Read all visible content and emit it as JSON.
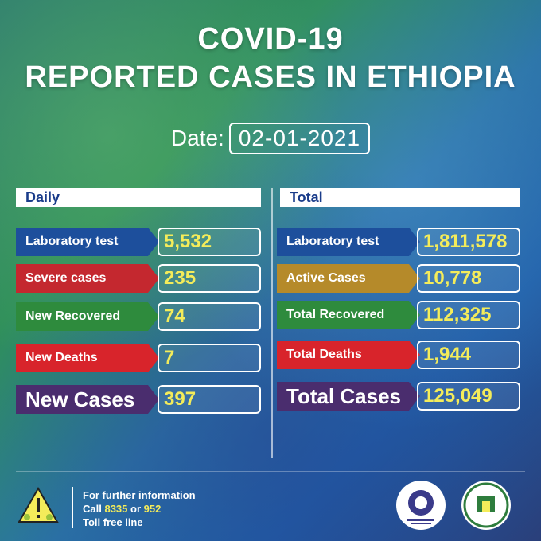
{
  "title": {
    "line1": "COVID-19",
    "line2": "REPORTED CASES IN ETHIOPIA"
  },
  "date": {
    "label": "Date:",
    "value": "02-01-2021"
  },
  "daily": {
    "header": "Daily",
    "rows": [
      {
        "label": "Laboratory test",
        "value": "5,532",
        "color": "#1d4f9c"
      },
      {
        "label": "Severe cases",
        "value": "235",
        "color": "#c4282f"
      },
      {
        "label": "New Recovered",
        "value": "74",
        "color": "#2e8b3d"
      },
      {
        "label": "New Deaths",
        "value": "7",
        "color": "#d8242b"
      },
      {
        "label": "New Cases",
        "value": "397",
        "color": "#4a2d6e"
      }
    ]
  },
  "total": {
    "header": "Total",
    "rows": [
      {
        "label": "Laboratory test",
        "value": "1,811,578",
        "color": "#1d4f9c"
      },
      {
        "label": "Active Cases",
        "value": "10,778",
        "color": "#b58a2a"
      },
      {
        "label": "Total Recovered",
        "value": "112,325",
        "color": "#2e8b3d"
      },
      {
        "label": "Total Deaths",
        "value": "1,944",
        "color": "#d8242b"
      },
      {
        "label": "Total Cases",
        "value": "125,049",
        "color": "#4a2d6e"
      }
    ]
  },
  "footer": {
    "line1": "For further information",
    "call_prefix": "Call ",
    "call_num1": "8335",
    "call_or": " or ",
    "call_num2": "952",
    "line3": "Toll free line"
  },
  "icons": {
    "warning": "warning-virus-icon",
    "logo_moh": "ministry-of-health-logo",
    "logo_ephi": "ethiopian-public-health-institute-logo"
  }
}
